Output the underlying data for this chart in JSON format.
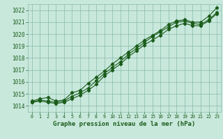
{
  "xlabel": "Graphe pression niveau de la mer (hPa)",
  "background_color": "#c8e8dc",
  "grid_color": "#88bbaa",
  "line_color": "#1a5c1a",
  "xlim": [
    -0.5,
    23.5
  ],
  "ylim": [
    1013.5,
    1022.5
  ],
  "yticks": [
    1014,
    1015,
    1016,
    1017,
    1018,
    1019,
    1020,
    1021,
    1022
  ],
  "xticks": [
    0,
    1,
    2,
    3,
    4,
    5,
    6,
    7,
    8,
    9,
    10,
    11,
    12,
    13,
    14,
    15,
    16,
    17,
    18,
    19,
    20,
    21,
    22,
    23
  ],
  "line1": [
    1014.4,
    1014.6,
    1014.7,
    1014.4,
    1014.5,
    1015.1,
    1015.3,
    1015.9,
    1016.4,
    1016.9,
    1017.5,
    1018.0,
    1018.5,
    1019.0,
    1019.5,
    1019.9,
    1020.3,
    1020.8,
    1021.1,
    1021.2,
    1021.0,
    1021.0,
    1021.5,
    1022.2
  ],
  "line2": [
    1014.3,
    1014.5,
    1014.4,
    1014.3,
    1014.4,
    1014.8,
    1015.1,
    1015.5,
    1016.1,
    1016.7,
    1017.2,
    1017.7,
    1018.3,
    1018.8,
    1019.3,
    1019.8,
    1020.2,
    1020.6,
    1021.0,
    1021.1,
    1020.9,
    1020.8,
    1021.2,
    1021.8
  ],
  "line3": [
    1014.3,
    1014.4,
    1014.3,
    1014.2,
    1014.3,
    1014.6,
    1014.9,
    1015.3,
    1015.8,
    1016.5,
    1017.0,
    1017.5,
    1018.1,
    1018.6,
    1019.1,
    1019.5,
    1019.9,
    1020.4,
    1020.7,
    1020.9,
    1020.7,
    1020.7,
    1021.1,
    1021.7
  ],
  "tick_fontsize": 5.5,
  "xtick_fontsize": 4.8,
  "label_fontsize": 6.5
}
